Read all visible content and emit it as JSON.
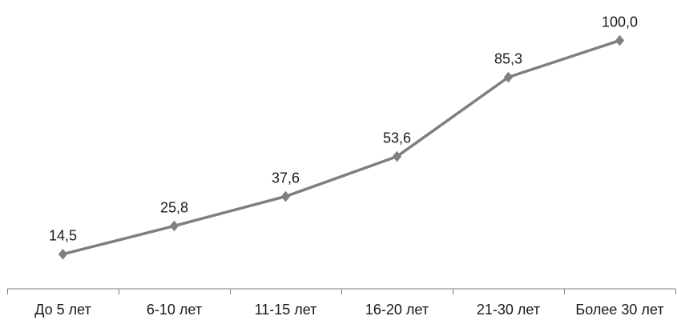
{
  "chart_data": {
    "type": "line",
    "title": "",
    "xlabel": "",
    "ylabel": "",
    "categories": [
      "До 5 лет",
      "6-10 лет",
      "11-15 лет",
      "16-20 лет",
      "21-30 лет",
      "Более 30 лет"
    ],
    "series": [
      {
        "values": [
          14.5,
          25.8,
          37.6,
          53.6,
          85.3,
          100.0
        ],
        "labels": [
          "14,5",
          "25,8",
          "37,6",
          "53,6",
          "85,3",
          "100,0"
        ],
        "color": "#7f7f7f",
        "marker": "diamond"
      }
    ],
    "ylim": [
      0,
      105
    ],
    "grid": false,
    "legend": "none",
    "data_labels": true
  }
}
